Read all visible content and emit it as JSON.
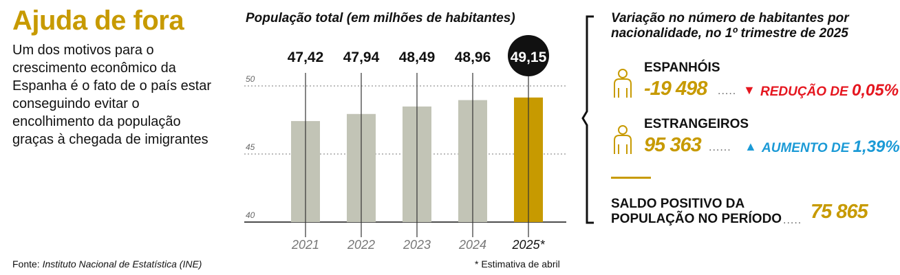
{
  "title": "Ajuda de fora",
  "intro": "Um dos motivos para o crescimento econômico da Espanha é o fato de o país estar conseguindo evitar o encolhimento da população graças à chegada de imigrantes",
  "colors": {
    "accent": "#c79a00",
    "bar": "#c2c4b6",
    "highlight_bar": "#c79a00",
    "red": "#e5161f",
    "blue": "#1b9ad6"
  },
  "chart_data": {
    "type": "bar",
    "title": "População total (em milhões de habitantes)",
    "categories": [
      "2021",
      "2022",
      "2023",
      "2024",
      "2025*"
    ],
    "values": [
      47.42,
      47.94,
      48.49,
      48.96,
      49.15
    ],
    "value_labels": [
      "47,42",
      "47,94",
      "48,49",
      "48,96",
      "49,15"
    ],
    "ylim": [
      40,
      50
    ],
    "yticks": [
      40,
      45,
      50
    ],
    "ytick_labels": [
      "40",
      "45",
      "50"
    ],
    "highlight_index": 4,
    "grid": true
  },
  "right_panel": {
    "title": "Variação no número de habitantes por nacionalidade, no 1º trimestre de 2025",
    "spaniards": {
      "label": "ESPANHÓIS",
      "value": "-19 498",
      "dots": ".....",
      "direction_icon": "triangle-down-icon",
      "change_text": "REDUÇÃO DE",
      "change_pct": "0,05%"
    },
    "foreigners": {
      "label": "ESTRANGEIROS",
      "value": "95 363",
      "dots": "......",
      "direction_icon": "triangle-up-icon",
      "change_text": "AUMENTO DE",
      "change_pct": "1,39%"
    },
    "balance": {
      "label_line1": "SALDO POSITIVO DA",
      "label_line2": "POPULAÇÃO NO PERÍODO",
      "dots": ".....",
      "value": "75 865"
    }
  },
  "source_prefix": "Fonte: ",
  "source_name": "Instituto Nacional de Estatística (INE)",
  "footnote": "* Estimativa de abril"
}
